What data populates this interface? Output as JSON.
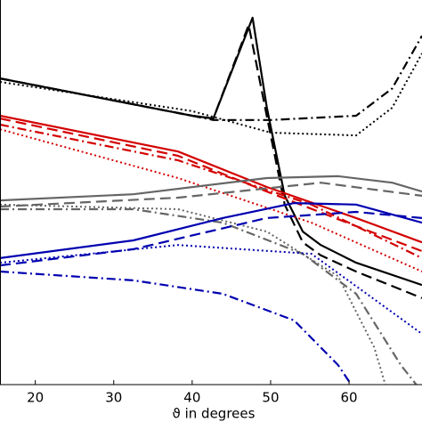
{
  "chart_data": {
    "type": "line",
    "x_label": "ϑ in degrees",
    "xlim": [
      15.5,
      69.3
    ],
    "xticks": [
      20,
      30,
      40,
      50,
      60
    ],
    "ylim": [
      0,
      100
    ],
    "series": [
      {
        "color": "#000000",
        "style": "solid",
        "x": [
          15.5,
          40,
          42.7,
          47.7,
          49.5,
          51.8,
          54.1,
          56.4,
          60.9,
          69.3
        ],
        "values": [
          79.6,
          69.9,
          69.2,
          95.4,
          72.2,
          49.1,
          39.8,
          36.3,
          31.7,
          25.9
        ]
      },
      {
        "color": "#000000",
        "style": "dashed",
        "x": [
          15.5,
          40,
          42.7,
          47.2,
          49.5,
          51.8,
          54.1,
          56.4,
          60.9,
          69.3
        ],
        "values": [
          79.6,
          69.9,
          69.2,
          93.5,
          69.9,
          46.8,
          37,
          33.6,
          29.4,
          22.5
        ]
      },
      {
        "color": "#000000",
        "style": "dashdot",
        "x": [
          15.5,
          40,
          42.7,
          50,
          60.9,
          65.5,
          69.3
        ],
        "values": [
          79.6,
          69.9,
          68.8,
          68.8,
          69.9,
          77,
          90.7
        ]
      },
      {
        "color": "#000000",
        "style": "dotted",
        "x": [
          15.5,
          40,
          50,
          60.9,
          65.5,
          69.3
        ],
        "values": [
          78.7,
          71.1,
          65.5,
          64.8,
          72,
          86.1
        ]
      },
      {
        "color": "#d40000",
        "style": "solid",
        "x": [
          15.5,
          38.2,
          49.5,
          60.9,
          69.3
        ],
        "values": [
          69.9,
          60.6,
          51.4,
          43.3,
          37
        ]
      },
      {
        "color": "#d40000",
        "style": "dashed",
        "x": [
          15.5,
          38.2,
          49.5,
          60.9,
          69.3
        ],
        "values": [
          69.2,
          59.5,
          50.2,
          41.2,
          34.7
        ]
      },
      {
        "color": "#d40000",
        "style": "dashdot",
        "x": [
          15.5,
          38.2,
          55.2,
          69.3
        ],
        "values": [
          67.6,
          58.3,
          46.8,
          32.9
        ]
      },
      {
        "color": "#d40000",
        "style": "dotted",
        "x": [
          15.5,
          38.2,
          55.2,
          69.3
        ],
        "values": [
          66.4,
          53.7,
          42.1,
          29.4
        ]
      },
      {
        "color": "#666666",
        "style": "solid",
        "x": [
          15.5,
          32.5,
          49.5,
          58.6,
          65.5,
          69.3
        ],
        "values": [
          47.9,
          49.5,
          53.7,
          54.2,
          52.5,
          50.2
        ]
      },
      {
        "color": "#666666",
        "style": "dashed",
        "x": [
          15.5,
          38.2,
          56.4,
          69.3
        ],
        "values": [
          46.3,
          48.6,
          52.5,
          49.1
        ]
      },
      {
        "color": "#666666",
        "style": "dashdot",
        "x": [
          15.5,
          32.5,
          43.9,
          54.1,
          60.9,
          66.6,
          69.3
        ],
        "values": [
          45.6,
          45.6,
          42.1,
          34,
          23.6,
          5.1,
          -1.9
        ]
      },
      {
        "color": "#666666",
        "style": "dotted",
        "x": [
          15.5,
          38.2,
          49.5,
          58.6,
          63.2,
          64.9
        ],
        "values": [
          46.8,
          45.6,
          39.8,
          28.2,
          9.7,
          -1.9
        ]
      },
      {
        "color": "#0000b0",
        "style": "solid",
        "x": [
          15.5,
          32.5,
          43.9,
          53,
          60.9,
          69.3
        ],
        "values": [
          32.9,
          37.5,
          43.3,
          47.2,
          46.8,
          42.1
        ]
      },
      {
        "color": "#0000b0",
        "style": "dashed",
        "x": [
          15.5,
          32.5,
          49.5,
          60.9,
          69.3
        ],
        "values": [
          31,
          35.2,
          43.3,
          44.9,
          43.3
        ]
      },
      {
        "color": "#0000b0",
        "style": "dotted",
        "x": [
          15.5,
          38.2,
          55.2,
          69.3
        ],
        "values": [
          31.7,
          36.3,
          34,
          13.2
        ]
      },
      {
        "color": "#0000b0",
        "style": "dashdot",
        "x": [
          15.5,
          32.5,
          43.9,
          53,
          58.6,
          60.9
        ],
        "values": [
          29.4,
          27.1,
          23.6,
          16.7,
          5.1,
          -1.9
        ]
      }
    ]
  }
}
